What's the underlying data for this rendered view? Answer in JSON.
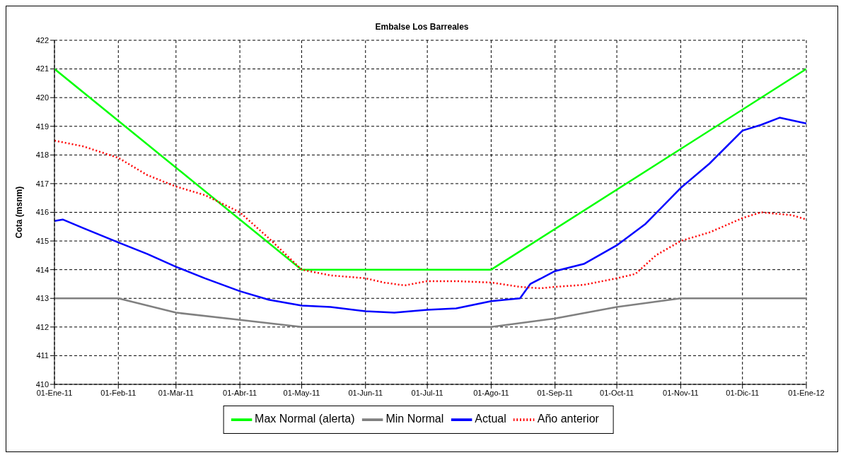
{
  "chart_data": {
    "type": "line",
    "title": "Embalse Los Barreales",
    "ylabel": "Cota (msnm)",
    "xlim": [
      "2011-01-01",
      "2012-01-01"
    ],
    "xticks": [
      {
        "value": "2011-01-01",
        "label": "01-Ene-11"
      },
      {
        "value": "2011-02-01",
        "label": "01-Feb-11"
      },
      {
        "value": "2011-03-01",
        "label": "01-Mar-11"
      },
      {
        "value": "2011-04-01",
        "label": "01-Abr-11"
      },
      {
        "value": "2011-05-01",
        "label": "01-May-11"
      },
      {
        "value": "2011-06-01",
        "label": "01-Jun-11"
      },
      {
        "value": "2011-07-01",
        "label": "01-Jul-11"
      },
      {
        "value": "2011-08-01",
        "label": "01-Ago-11"
      },
      {
        "value": "2011-09-01",
        "label": "01-Sep-11"
      },
      {
        "value": "2011-10-01",
        "label": "01-Oct-11"
      },
      {
        "value": "2011-11-01",
        "label": "01-Nov-11"
      },
      {
        "value": "2011-12-01",
        "label": "01-Dic-11"
      },
      {
        "value": "2012-01-01",
        "label": "01-Ene-12"
      }
    ],
    "ylim": [
      410,
      422
    ],
    "yticks": [
      410,
      411,
      412,
      413,
      414,
      415,
      416,
      417,
      418,
      419,
      420,
      421,
      422
    ],
    "grid": true,
    "legend": "bottom",
    "marker": "none",
    "series": [
      {
        "name": "Max Normal (alerta)",
        "color": "#00ff00",
        "line_style": "solid",
        "x": [
          "2011-01-01",
          "2011-05-01",
          "2011-08-01",
          "2012-01-01"
        ],
        "values": [
          421,
          414,
          414,
          421
        ]
      },
      {
        "name": "Min Normal",
        "color": "#808080",
        "line_style": "solid",
        "x": [
          "2011-01-01",
          "2011-02-01",
          "2011-03-01",
          "2011-04-01",
          "2011-05-01",
          "2011-08-01",
          "2011-09-01",
          "2011-10-01",
          "2011-11-01",
          "2012-01-01"
        ],
        "values": [
          413,
          413,
          412.5,
          412.25,
          412,
          412,
          412.3,
          412.7,
          413,
          413
        ]
      },
      {
        "name": "Actual",
        "color": "#0000ff",
        "line_style": "solid",
        "x": [
          "2011-01-01",
          "2011-01-05",
          "2011-01-15",
          "2011-02-01",
          "2011-02-15",
          "2011-03-01",
          "2011-03-15",
          "2011-04-01",
          "2011-04-15",
          "2011-05-01",
          "2011-05-15",
          "2011-06-01",
          "2011-06-15",
          "2011-07-01",
          "2011-07-15",
          "2011-08-01",
          "2011-08-15",
          "2011-08-20",
          "2011-09-01",
          "2011-09-15",
          "2011-10-01",
          "2011-10-15",
          "2011-11-01",
          "2011-11-15",
          "2011-12-01",
          "2011-12-10",
          "2011-12-19",
          "2012-01-01"
        ],
        "values": [
          415.7,
          415.75,
          415.45,
          414.95,
          414.55,
          414.1,
          413.7,
          413.25,
          412.95,
          412.75,
          412.7,
          412.55,
          412.5,
          412.6,
          412.65,
          412.9,
          413.0,
          413.5,
          413.95,
          414.2,
          414.85,
          415.6,
          416.85,
          417.7,
          418.85,
          419.05,
          419.3,
          419.1
        ]
      },
      {
        "name": "Año anterior",
        "color": "#ff0000",
        "line_style": "dotted",
        "x": [
          "2011-01-01",
          "2011-01-15",
          "2011-02-01",
          "2011-02-15",
          "2011-03-01",
          "2011-03-15",
          "2011-04-01",
          "2011-04-15",
          "2011-05-01",
          "2011-05-15",
          "2011-06-01",
          "2011-06-10",
          "2011-06-20",
          "2011-07-01",
          "2011-07-15",
          "2011-08-01",
          "2011-08-15",
          "2011-08-25",
          "2011-09-01",
          "2011-09-15",
          "2011-10-01",
          "2011-10-10",
          "2011-10-20",
          "2011-11-01",
          "2011-11-15",
          "2011-12-01",
          "2011-12-10",
          "2011-12-25",
          "2012-01-01"
        ],
        "values": [
          418.5,
          418.3,
          417.9,
          417.3,
          416.9,
          416.6,
          416.0,
          415.1,
          414.0,
          413.8,
          413.7,
          413.55,
          413.45,
          413.6,
          413.6,
          413.55,
          413.4,
          413.35,
          413.4,
          413.47,
          413.7,
          413.85,
          414.5,
          415.0,
          415.3,
          415.8,
          416.0,
          415.9,
          415.75
        ]
      }
    ]
  }
}
